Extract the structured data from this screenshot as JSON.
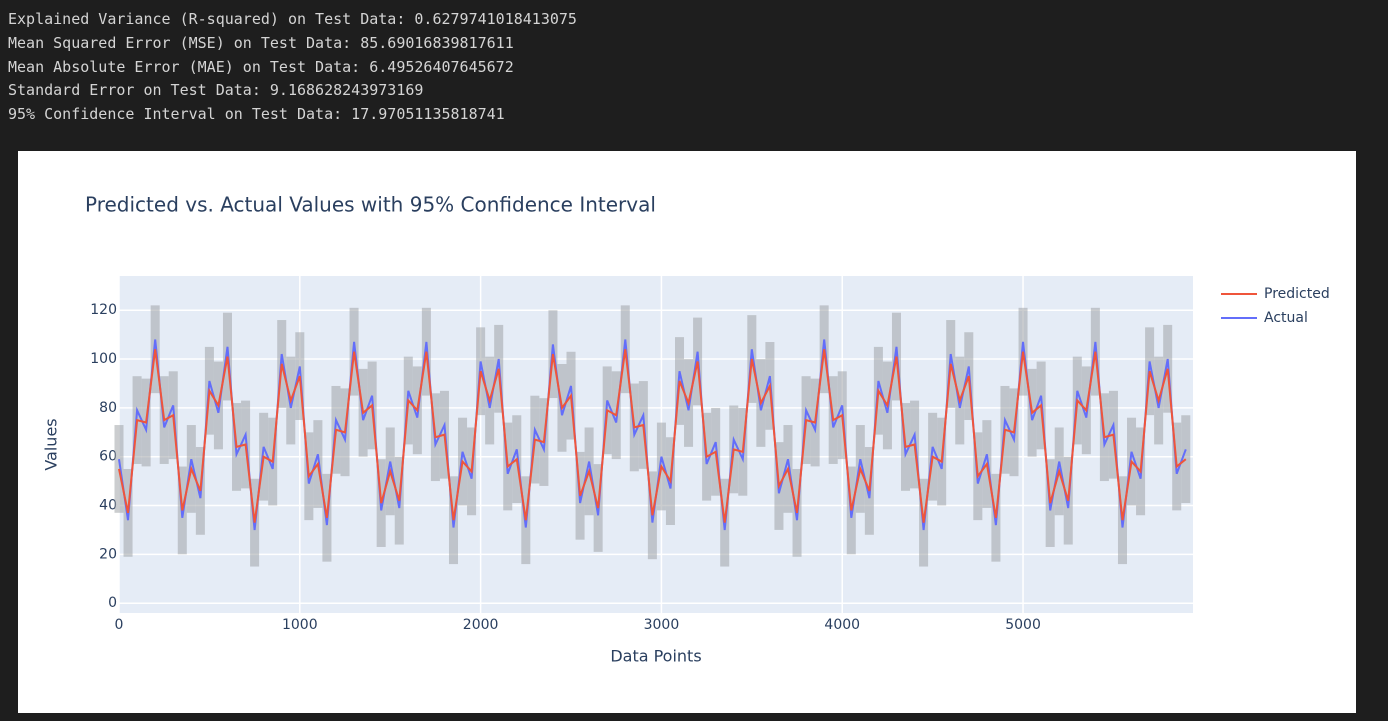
{
  "output_lines": [
    "Explained Variance (R-squared) on Test Data: 0.6279741018413075",
    "Mean Squared Error (MSE) on Test Data: 85.69016839817611",
    "Mean Absolute Error (MAE) on Test Data: 6.49526407645672",
    "Standard Error on Test Data: 9.168628243973169",
    "95% Confidence Interval on Test Data: 17.97051135818741"
  ],
  "chart_data": {
    "type": "line",
    "title": "Predicted vs. Actual Values with 95% Confidence Interval",
    "x_label": "Data Points",
    "y_label": "Values",
    "x": [
      0,
      50,
      100,
      150,
      200,
      250,
      300,
      350,
      400,
      450,
      500,
      550,
      600,
      650,
      700,
      750,
      800,
      850,
      900,
      950,
      1000,
      1050,
      1100,
      1150,
      1200,
      1250,
      1300,
      1350,
      1400,
      1450,
      1500,
      1550,
      1600,
      1650,
      1700,
      1750,
      1800,
      1850,
      1900,
      1950,
      2000,
      2050,
      2100,
      2150,
      2200,
      2250,
      2300,
      2350,
      2400,
      2450,
      2500,
      2550,
      2600,
      2650,
      2700,
      2750,
      2800,
      2850,
      2900,
      2950,
      3000,
      3050,
      3100,
      3150,
      3200,
      3250,
      3300,
      3350,
      3400,
      3450,
      3500,
      3550,
      3600,
      3650,
      3700,
      3750,
      3800,
      3850,
      3900,
      3950,
      4000,
      4050,
      4100,
      4150,
      4200,
      4250,
      4300,
      4350,
      4400,
      4450,
      4500,
      4550,
      4600,
      4650,
      4700,
      4750,
      4800,
      4850,
      4900,
      4950,
      5000,
      5050,
      5100,
      5150,
      5200,
      5250,
      5300,
      5350,
      5400,
      5450,
      5500,
      5550,
      5600,
      5650,
      5700,
      5750,
      5800,
      5850,
      5900
    ],
    "series": [
      {
        "name": "Predicted",
        "color": "#ef553b",
        "values": [
          55,
          37,
          75,
          74,
          104,
          75,
          77,
          38,
          55,
          46,
          87,
          81,
          101,
          64,
          65,
          33,
          60,
          58,
          98,
          83,
          93,
          52,
          57,
          35,
          71,
          70,
          103,
          78,
          81,
          41,
          54,
          42,
          83,
          79,
          103,
          68,
          69,
          34,
          58,
          54,
          95,
          83,
          96,
          56,
          59,
          34,
          67,
          66,
          102,
          80,
          85,
          44,
          54,
          39,
          79,
          77,
          104,
          72,
          73,
          36,
          56,
          50,
          91,
          82,
          99,
          60,
          62,
          33,
          63,
          62,
          100,
          82,
          89,
          48,
          55,
          37,
          75,
          74,
          104,
          75,
          77,
          38,
          55,
          46,
          87,
          81,
          101,
          64,
          65,
          33,
          60,
          58,
          98,
          83,
          93,
          52,
          57,
          35,
          71,
          70,
          103,
          78,
          81,
          41,
          54,
          42,
          83,
          79,
          103,
          68,
          69,
          34,
          58,
          54,
          95,
          83,
          96,
          56,
          59
        ]
      },
      {
        "name": "Actual",
        "color": "#636efa",
        "values": [
          59,
          34,
          79,
          71,
          108,
          72,
          81,
          35,
          59,
          43,
          91,
          78,
          105,
          61,
          69,
          30,
          64,
          55,
          102,
          80,
          97,
          49,
          61,
          32,
          75,
          67,
          107,
          75,
          85,
          38,
          58,
          39,
          87,
          76,
          107,
          65,
          73,
          31,
          62,
          51,
          99,
          80,
          100,
          53,
          63,
          31,
          71,
          63,
          106,
          77,
          89,
          41,
          58,
          36,
          83,
          74,
          108,
          69,
          77,
          33,
          60,
          47,
          95,
          79,
          103,
          57,
          66,
          30,
          67,
          59,
          104,
          79,
          93,
          45,
          59,
          34,
          79,
          71,
          108,
          72,
          81,
          35,
          59,
          43,
          91,
          78,
          105,
          61,
          69,
          30,
          64,
          55,
          102,
          80,
          97,
          49,
          61,
          32,
          75,
          67,
          107,
          75,
          85,
          38,
          58,
          39,
          87,
          76,
          107,
          65,
          73,
          31,
          62,
          51,
          99,
          80,
          100,
          53,
          63
        ]
      }
    ],
    "confidence_band": {
      "color": "#a0a4a8",
      "error": 17.97051135818741
    },
    "xlim": [
      0,
      5940
    ],
    "ylim": [
      -4,
      134
    ],
    "xticks": [
      0,
      1000,
      2000,
      3000,
      4000,
      5000
    ],
    "yticks": [
      0,
      20,
      40,
      60,
      80,
      100,
      120
    ],
    "grid": true
  }
}
